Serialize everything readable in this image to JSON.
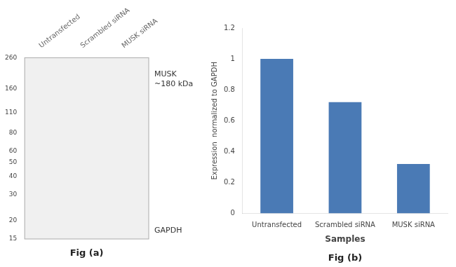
{
  "chart_data": [
    {
      "type": "blot",
      "categories": [
        "Untransfected",
        "Scrambled siRNA",
        "MUSK siRNA"
      ],
      "ylim": [
        15,
        260
      ],
      "yticks": [
        260,
        160,
        110,
        80,
        60,
        50,
        40,
        30,
        20,
        15
      ],
      "log": "y",
      "grid": false,
      "annotations": [
        "MUSK\n~180 kDa",
        "GAPDH",
        "Fig (a)"
      ]
    },
    {
      "type": "bar",
      "categories": [
        "Untransfected",
        "Scrambled siRNA",
        "MUSK siRNA"
      ],
      "values": [
        1.0,
        0.72,
        0.32
      ],
      "color": "#4a7ab5",
      "xlabel": "Samples",
      "ylabel": "Expression  normalized to GAPDH",
      "ylim": [
        0,
        1.2
      ],
      "yticks": [
        0,
        0.2,
        0.4,
        0.6,
        0.8,
        1.0,
        1.2
      ],
      "grid": false,
      "annotations": [
        "Fig (b)"
      ]
    }
  ]
}
